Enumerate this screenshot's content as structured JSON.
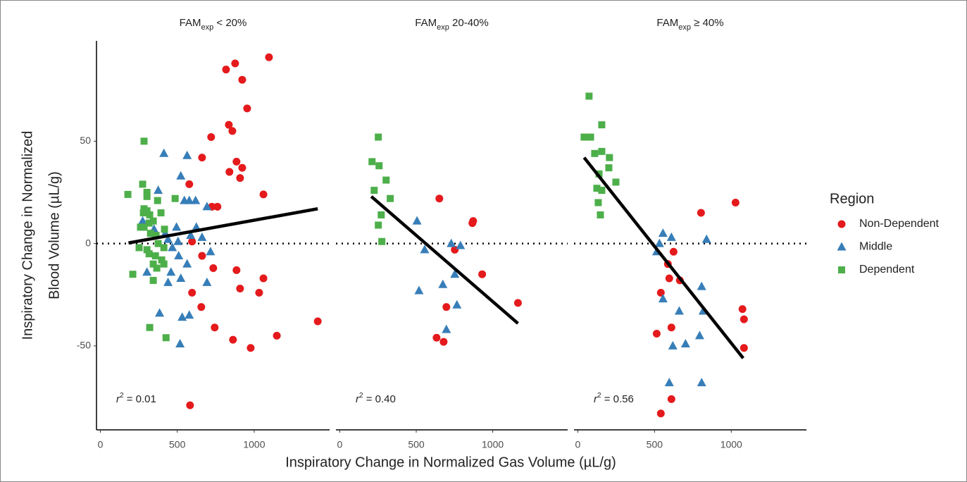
{
  "xlabel": "Inspiratory Change in Normalized Gas Volume (µL/g)",
  "ylabel": [
    "Inspiratory Change in Normalized",
    "Blood Volume (µL/g)"
  ],
  "legend": {
    "title": "Region",
    "position": "right",
    "items": [
      {
        "name": "Non-Dependent",
        "color": "#e41a1c",
        "marker": "circle"
      },
      {
        "name": "Middle",
        "color": "#377eb8",
        "marker": "triangle"
      },
      {
        "name": "Dependent",
        "color": "#4daf4a",
        "marker": "square"
      }
    ]
  },
  "chart_data": [
    {
      "type": "scatter",
      "title": {
        "main": "FAM",
        "sub": "exp",
        "rest": " < 20%"
      },
      "annotation": {
        "main": "r",
        "sup": "2",
        "rest": " = 0.01"
      },
      "xlim": [
        -25,
        1490
      ],
      "xticks": [
        0,
        500,
        1000
      ],
      "ylim": [
        -91,
        99
      ],
      "yticks": [
        -50,
        0,
        50
      ],
      "reference_line": 0,
      "fit": {
        "x": [
          183,
          1413
        ],
        "y": [
          0.3,
          17
        ]
      },
      "series": [
        {
          "x": [
            1096,
            876,
            817,
            922,
            954,
            835,
            858,
            720,
            885,
            922,
            839,
            908,
            661,
            578,
            1060,
            761,
            725,
            596,
            661,
            734,
            885,
            1060,
            908,
            1032,
            596,
            656,
            743,
            1147,
            1413,
            862,
            977,
            583
          ],
          "values": [
            91,
            88,
            85,
            80,
            66,
            58,
            55,
            52,
            40,
            37,
            35,
            32,
            42,
            29,
            24,
            18,
            18,
            1,
            -6,
            -12,
            -13,
            -17,
            -22,
            -24,
            -24,
            -31,
            -41,
            -45,
            -38,
            -47,
            -51,
            -79
          ]
        },
        {
          "x": [
            413,
            564,
            523,
            546,
            578,
            619,
            693,
            376,
            275,
            495,
            624,
            349,
            587,
            661,
            440,
            422,
            505,
            468,
            716,
            509,
            564,
            303,
            459,
            523,
            440,
            693,
            385,
            578,
            532,
            518
          ],
          "values": [
            44,
            43,
            33,
            21,
            21,
            21,
            18,
            26,
            11,
            8,
            8,
            7,
            4,
            3,
            2,
            5,
            1,
            -2,
            -4,
            -6,
            -10,
            -14,
            -14,
            -17,
            -19,
            -19,
            -34,
            -35,
            -36,
            -49
          ]
        },
        {
          "x": [
            284,
            179,
            275,
            303,
            303,
            284,
            372,
            303,
            280,
            321,
            394,
            317,
            261,
            344,
            284,
            417,
            326,
            362,
            252,
            303,
            376,
            413,
            317,
            358,
            399,
            413,
            344,
            367,
            211,
            344,
            486,
            321,
            427
          ],
          "values": [
            50,
            24,
            29,
            25,
            23,
            17,
            21,
            16,
            15,
            14,
            15,
            10,
            8,
            11,
            8,
            7,
            5,
            4,
            -2,
            -3,
            0,
            -2,
            -5,
            -6,
            -8,
            -10,
            -10,
            -12,
            -15,
            -18,
            22,
            -41,
            -46
          ]
        }
      ]
    },
    {
      "type": "scatter",
      "title": {
        "main": "FAM",
        "sub": "exp",
        "rest": " 20-40%"
      },
      "annotation": {
        "main": "r",
        "sup": "2",
        "rest": " = 0.40"
      },
      "xlim": [
        -25,
        1490
      ],
      "xticks": [
        0,
        500,
        1000
      ],
      "ylim": [
        -91,
        99
      ],
      "reference_line": 0,
      "fit": {
        "x": [
          206,
          1165
        ],
        "y": [
          23,
          -39
        ]
      },
      "series": [
        {
          "x": [
            651,
            872,
            867,
            752,
            931,
            1165,
            697,
            633,
            679
          ],
          "values": [
            22,
            11,
            10,
            -3,
            -15,
            -29,
            -31,
            -46,
            -48
          ]
        },
        {
          "x": [
            505,
            555,
            729,
            789,
            752,
            674,
            518,
            766,
            697
          ],
          "values": [
            11,
            -3,
            0,
            -1,
            -15,
            -20,
            -23,
            -30,
            -42
          ]
        },
        {
          "x": [
            252,
            211,
            257,
            303,
            225,
            330,
            271,
            252,
            275
          ],
          "values": [
            52,
            40,
            38,
            31,
            26,
            22,
            14,
            9,
            1
          ]
        }
      ]
    },
    {
      "type": "scatter",
      "title": {
        "main": "FAM",
        "sub": "exp",
        "rest": " ≥ 40%"
      },
      "annotation": {
        "main": "r",
        "sup": "2",
        "rest": " = 0.56"
      },
      "xlim": [
        -25,
        1490
      ],
      "xticks": [
        0,
        500,
        1000
      ],
      "ylim": [
        -91,
        99
      ],
      "reference_line": 0,
      "fit": {
        "x": [
          41,
          1078
        ],
        "y": [
          42,
          -56
        ]
      },
      "series": [
        {
          "x": [
            1028,
            803,
            624,
            587,
            596,
            665,
            541,
            1073,
            1083,
            610,
            514,
            1083,
            610,
            541
          ],
          "values": [
            20,
            15,
            -4,
            -10,
            -17,
            -18,
            -24,
            -32,
            -37,
            -41,
            -44,
            -51,
            -76,
            -83
          ]
        },
        {
          "x": [
            555,
            610,
            532,
            514,
            839,
            807,
            555,
            661,
            817,
            794,
            702,
            619,
            596,
            807
          ],
          "values": [
            5,
            3,
            0,
            -4,
            2,
            -21,
            -27,
            -33,
            -33,
            -45,
            -49,
            -50,
            -68,
            -68
          ]
        },
        {
          "x": [
            73,
            41,
            83,
            156,
            110,
            156,
            206,
            202,
            138,
            248,
            124,
            156,
            133,
            147
          ],
          "values": [
            72,
            52,
            52,
            58,
            44,
            45,
            42,
            37,
            34,
            30,
            27,
            26,
            20,
            14
          ]
        }
      ]
    }
  ]
}
